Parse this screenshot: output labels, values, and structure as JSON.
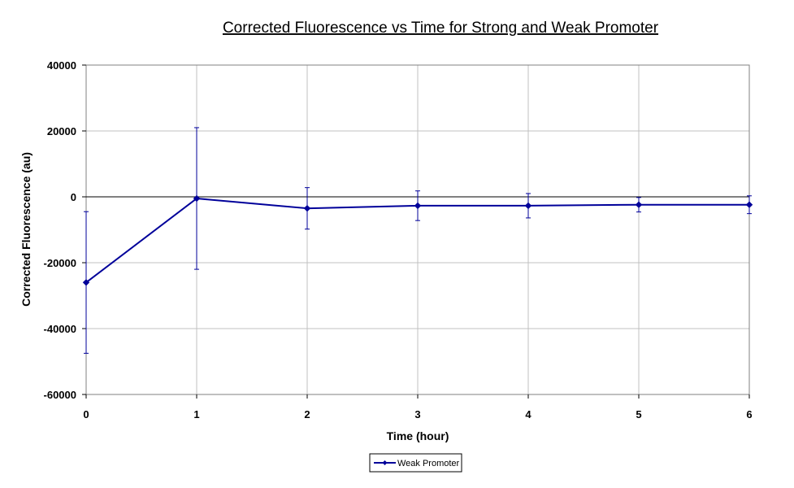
{
  "chart_data": {
    "type": "line",
    "title": "Corrected Fluorescence vs Time for Strong and Weak Promoter",
    "xlabel": "Time (hour)",
    "ylabel": "Corrected Fluorescence (au)",
    "xlim": [
      0,
      6
    ],
    "ylim": [
      -60000,
      40000
    ],
    "x_ticks": [
      "0",
      "1",
      "2",
      "3",
      "4",
      "5",
      "6"
    ],
    "y_ticks": [
      "40000",
      "20000",
      "0",
      "-20000",
      "-40000",
      "-60000"
    ],
    "grid": true,
    "legend_position": "bottom-center",
    "series": [
      {
        "name": "Weak Promoter",
        "color": "#00009A",
        "x": [
          0,
          1,
          2,
          3,
          4,
          5,
          6
        ],
        "y": [
          -26000,
          -500,
          -3500,
          -2700,
          -2700,
          -2400,
          -2400
        ],
        "error": [
          21500,
          21500,
          6300,
          4500,
          3700,
          2200,
          2700
        ]
      }
    ]
  }
}
